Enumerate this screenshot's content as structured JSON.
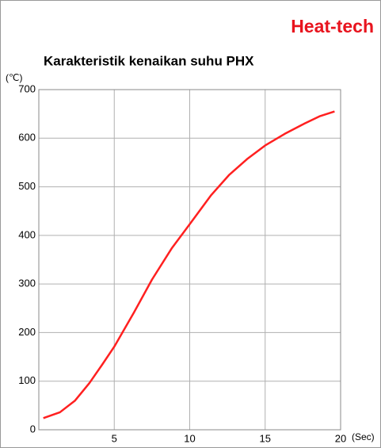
{
  "chart_data": {
    "type": "line",
    "brand": "Heat-tech",
    "title": "Karakteristik kenaikan suhu PHX",
    "y_label": "(℃)",
    "x_label": "(Sec)",
    "xlim": [
      0,
      20
    ],
    "xticks": [
      5,
      10,
      15,
      20
    ],
    "ylim": [
      0,
      700
    ],
    "yticks": [
      0,
      100,
      200,
      300,
      400,
      500,
      600,
      700
    ],
    "grid": true,
    "series": [
      {
        "name": "PHX",
        "color": "#ff2020",
        "x": [
          0.3,
          1.4,
          2.4,
          3.35,
          4.2,
          5,
          6.3,
          7.5,
          8.8,
          10,
          11.4,
          12.6,
          13.8,
          15,
          16.3,
          17.6,
          18.6,
          19.6
        ],
        "values": [
          24,
          36,
          60,
          96,
          134,
          171,
          241,
          309,
          373,
          423,
          482,
          524,
          557,
          585,
          609,
          630,
          645,
          655
        ]
      }
    ]
  }
}
